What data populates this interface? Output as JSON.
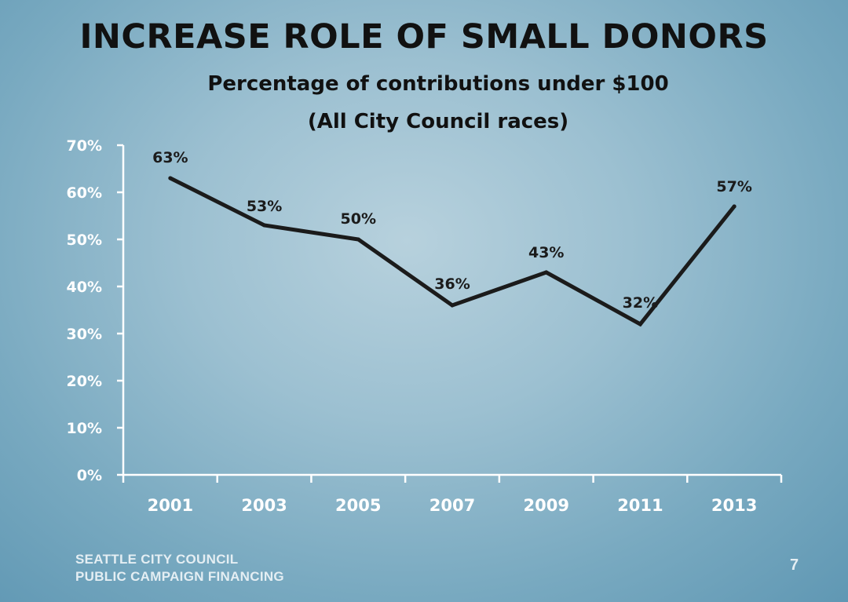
{
  "slide": {
    "title": "INCREASE ROLE OF SMALL DONORS",
    "footer_line1": "SEATTLE CITY COUNCIL",
    "footer_line2": "PUBLIC CAMPAIGN FINANCING",
    "page_number": "7"
  },
  "chart_data": {
    "type": "line",
    "title": "Percentage of contributions under $100",
    "subtitle": "(All City Council races)",
    "categories": [
      "2001",
      "2003",
      "2005",
      "2007",
      "2009",
      "2011",
      "2013"
    ],
    "values": [
      63,
      53,
      50,
      36,
      43,
      32,
      57
    ],
    "data_labels": [
      "63%",
      "53%",
      "50%",
      "36%",
      "43%",
      "32%",
      "57%"
    ],
    "yticks": [
      "0%",
      "10%",
      "20%",
      "30%",
      "40%",
      "50%",
      "60%",
      "70%"
    ],
    "ylim": [
      0,
      70
    ],
    "xlabel": "",
    "ylabel": "",
    "grid": false,
    "legend": "none",
    "line_color": "#1b1b1b",
    "axis_color": "#ffffff"
  }
}
